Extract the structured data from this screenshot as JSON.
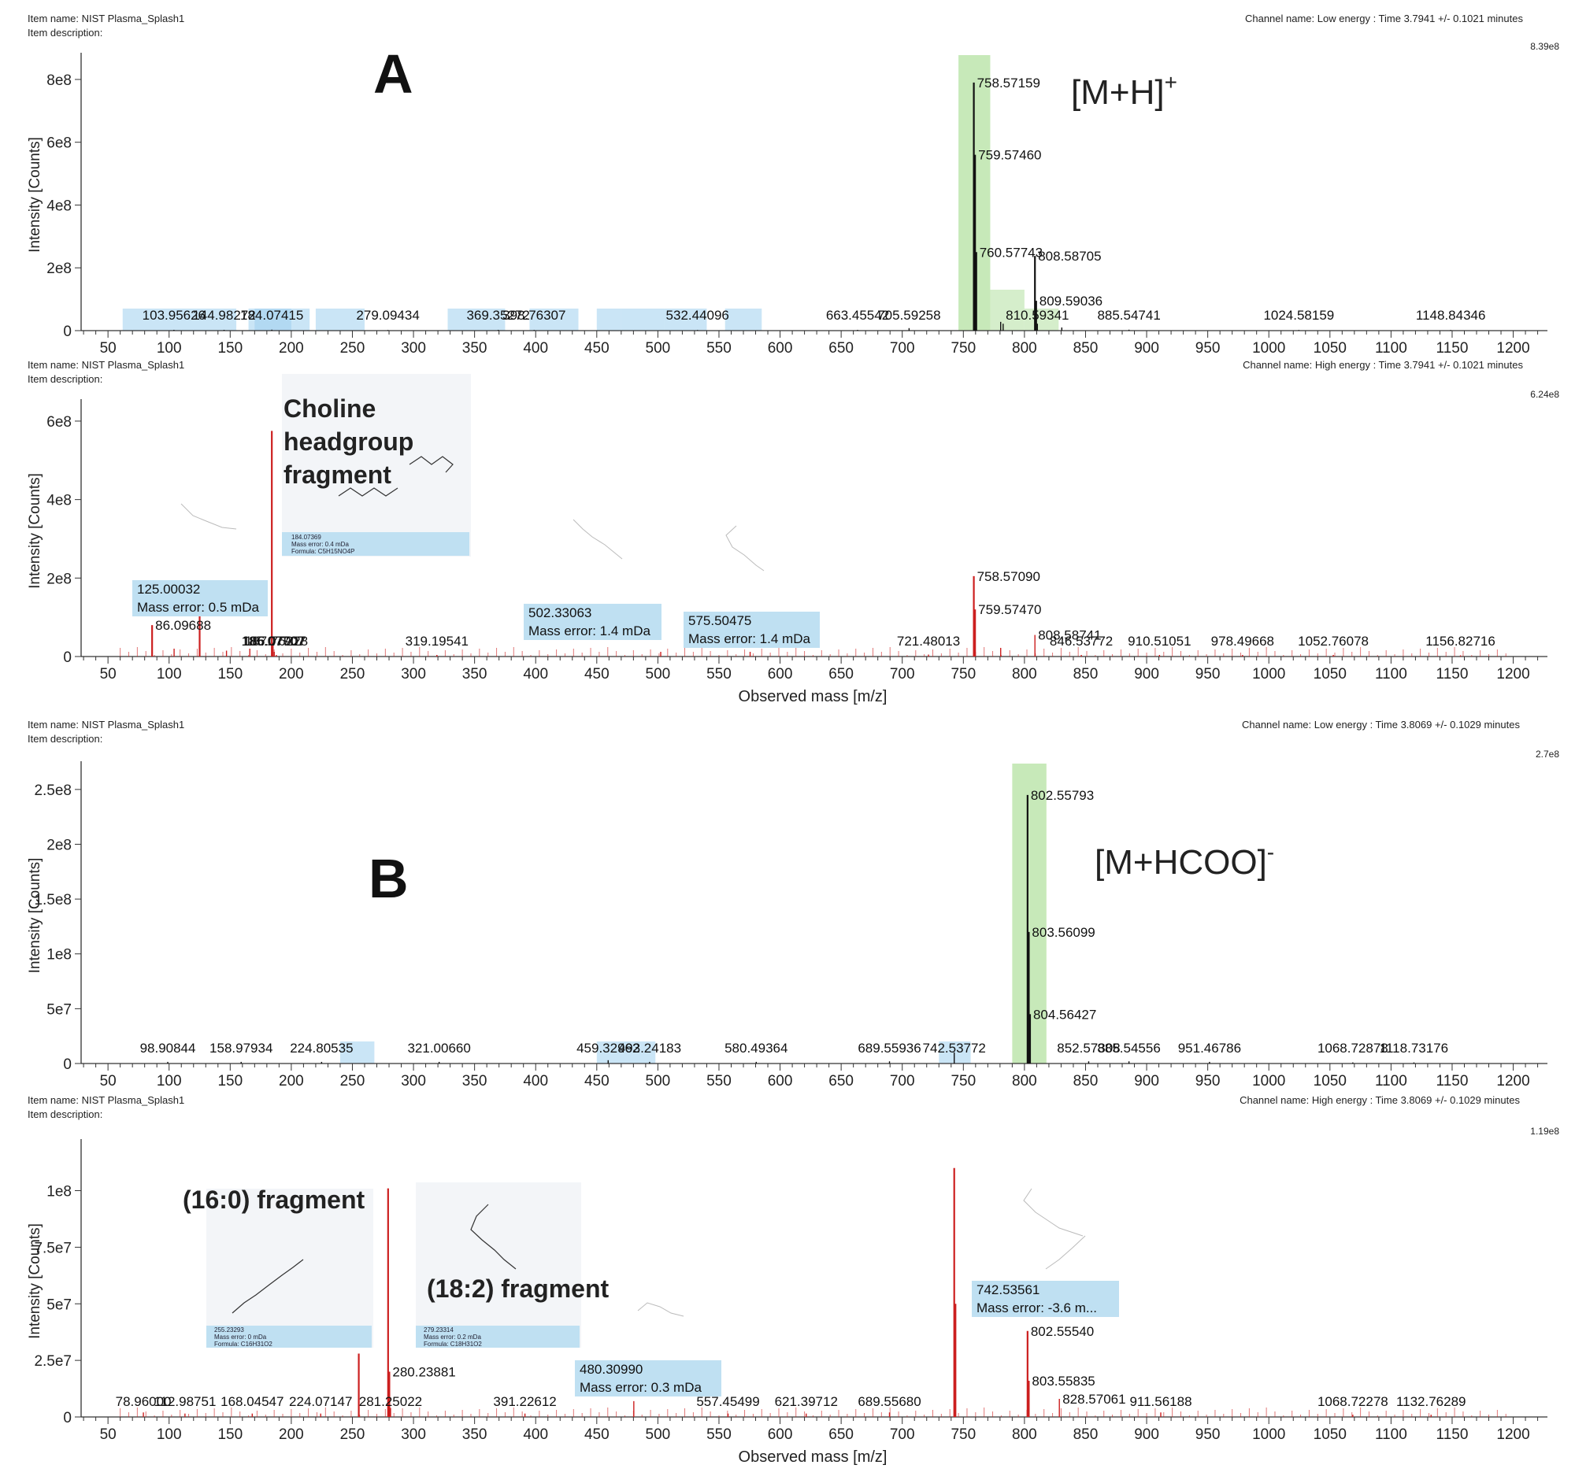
{
  "figure": {
    "panel_letters": [
      "A",
      "B"
    ],
    "adduct_labels": {
      "A": {
        "base": "[M+H]",
        "sup": "+"
      },
      "B": {
        "base": "[M+HCOO]",
        "sup": "-"
      }
    },
    "colors": {
      "low_energy_peak": "#111111",
      "high_energy_peak": "#cc1f1f",
      "precursor_highlight": "#b9e3a8",
      "annotation_box": "#bfe0f2",
      "axis": "#333333"
    },
    "structure_icon": "molecule-icon"
  },
  "chart_data": [
    {
      "id": "A-low",
      "type": "bar",
      "item_name": "Item name: NIST Plasma_Splash1",
      "item_description": "Item description:",
      "channel": "Channel name: Low energy : Time 3.7941 +/- 0.1021 minutes",
      "max_intensity_label": "8.39e8",
      "xlabel": "",
      "ylabel": "Intensity [Counts]",
      "xlim": [
        28,
        1228
      ],
      "ylim": [
        0,
        865000000
      ],
      "x_ticks": [
        50,
        100,
        150,
        200,
        250,
        300,
        350,
        400,
        450,
        500,
        550,
        600,
        650,
        700,
        750,
        800,
        850,
        900,
        950,
        1000,
        1050,
        1100,
        1150,
        1200
      ],
      "y_ticks": [
        {
          "v": 0,
          "t": "0"
        },
        {
          "v": 200000000,
          "t": "2e8"
        },
        {
          "v": 400000000,
          "t": "4e8"
        },
        {
          "v": 600000000,
          "t": "6e8"
        },
        {
          "v": 800000000,
          "t": "8e8"
        }
      ],
      "highlights": [
        {
          "from": 746,
          "to": 772,
          "color": "green"
        },
        {
          "from": 772,
          "to": 800,
          "color": "green"
        },
        {
          "from": 800,
          "to": 828,
          "color": "green"
        }
      ],
      "blue_bands": [
        [
          62,
          155
        ],
        [
          165,
          215
        ],
        [
          170,
          200
        ],
        [
          220,
          260
        ],
        [
          328,
          375
        ],
        [
          395,
          435
        ],
        [
          450,
          470
        ],
        [
          470,
          505
        ],
        [
          505,
          540
        ],
        [
          555,
          585
        ]
      ],
      "peaks": [
        {
          "mz": 103.95626,
          "i": 2500000,
          "label": "103.95626"
        },
        {
          "mz": 144.98272,
          "i": 2500000,
          "label": "144.98272"
        },
        {
          "mz": 184.07415,
          "i": 3000000,
          "label": "184.07415"
        },
        {
          "mz": 279.09434,
          "i": 2000000,
          "label": "279.09434"
        },
        {
          "mz": 369.35272,
          "i": 2500000,
          "label": "369.35272"
        },
        {
          "mz": 398.76307,
          "i": 2000000,
          "label": "398.76307"
        },
        {
          "mz": 532.44096,
          "i": 2000000,
          "label": "532.44096"
        },
        {
          "mz": 663.45542,
          "i": 2500000,
          "label": "663.45542"
        },
        {
          "mz": 705.59258,
          "i": 8000000,
          "label": "705.59258"
        },
        {
          "mz": 758.57159,
          "i": 790000000,
          "label": "758.57159"
        },
        {
          "mz": 759.5746,
          "i": 560000000,
          "label": "759.57460"
        },
        {
          "mz": 760.57743,
          "i": 250000000,
          "label": "760.57743"
        },
        {
          "mz": 780.55,
          "i": 28000000,
          "label": ""
        },
        {
          "mz": 782.56,
          "i": 22000000,
          "label": ""
        },
        {
          "mz": 808.58705,
          "i": 238000000,
          "label": "808.58705"
        },
        {
          "mz": 809.59036,
          "i": 95000000,
          "label": "809.59036"
        },
        {
          "mz": 810.59341,
          "i": 22000000,
          "label": "810.59341"
        },
        {
          "mz": 830.57,
          "i": 10000000,
          "label": ""
        },
        {
          "mz": 885.54741,
          "i": 3000000,
          "label": "885.54741"
        },
        {
          "mz": 1024.58159,
          "i": 2000000,
          "label": "1024.58159"
        },
        {
          "mz": 1148.84346,
          "i": 2000000,
          "label": "1148.84346"
        }
      ]
    },
    {
      "id": "A-high",
      "type": "bar",
      "item_name": "Item name: NIST Plasma_Splash1",
      "item_description": "Item description:",
      "channel": "Channel name: High energy : Time 3.7941 +/- 0.1021 minutes",
      "max_intensity_label": "6.24e8",
      "xlabel": "Observed mass [m/z]",
      "ylabel": "Intensity [Counts]",
      "xlim": [
        28,
        1228
      ],
      "ylim": [
        0,
        640000000
      ],
      "x_ticks": [
        50,
        100,
        150,
        200,
        250,
        300,
        350,
        400,
        450,
        500,
        550,
        600,
        650,
        700,
        750,
        800,
        850,
        900,
        950,
        1000,
        1050,
        1100,
        1150,
        1200
      ],
      "y_ticks": [
        {
          "v": 0,
          "t": "0"
        },
        {
          "v": 200000000,
          "t": "2e8"
        },
        {
          "v": 400000000,
          "t": "4e8"
        },
        {
          "v": 600000000,
          "t": "6e8"
        }
      ],
      "annotation_title": {
        "lines": [
          "Choline",
          "headgroup",
          "fragment"
        ]
      },
      "structure_box": {
        "mz": "184.07369",
        "error": "Mass error: 0.4 mDa",
        "formula": "Formula: C5H15NO4P"
      },
      "callouts": [
        {
          "mz": "125.00032",
          "error": "Mass error: 0.5 mDa"
        },
        {
          "mz": "502.33063",
          "error": "Mass error: 1.4 mDa"
        },
        {
          "mz": "575.50475",
          "error": "Mass error: 1.4 mDa"
        }
      ],
      "peaks": [
        {
          "mz": 86.09688,
          "i": 80000000,
          "label": "86.09688"
        },
        {
          "mz": 104.1,
          "i": 20000000,
          "label": ""
        },
        {
          "mz": 125.00032,
          "i": 110000000,
          "label": ""
        },
        {
          "mz": 146.98,
          "i": 15000000,
          "label": ""
        },
        {
          "mz": 166.06,
          "i": 20000000,
          "label": ""
        },
        {
          "mz": 184.07415,
          "i": 575000000,
          "label": ""
        },
        {
          "mz": 185.07707,
          "i": 35000000,
          "label": "185.07707"
        },
        {
          "mz": 186.07907,
          "i": 12000000,
          "label": "186.07907"
        },
        {
          "mz": 187.76228,
          "i": 4000000,
          "label": "187.76228"
        },
        {
          "mz": 319.19541,
          "i": 4000000,
          "label": "319.19541"
        },
        {
          "mz": 502.33063,
          "i": 12000000,
          "label": ""
        },
        {
          "mz": 575.50475,
          "i": 12000000,
          "label": ""
        },
        {
          "mz": 721.48013,
          "i": 5000000,
          "label": "721.48013"
        },
        {
          "mz": 758.5709,
          "i": 205000000,
          "label": "758.57090"
        },
        {
          "mz": 759.5747,
          "i": 120000000,
          "label": "759.57470"
        },
        {
          "mz": 780.55,
          "i": 22000000,
          "label": ""
        },
        {
          "mz": 808.58741,
          "i": 55000000,
          "label": "808.58741"
        },
        {
          "mz": 846.53772,
          "i": 4000000,
          "label": "846.53772"
        },
        {
          "mz": 910.51051,
          "i": 4000000,
          "label": "910.51051"
        },
        {
          "mz": 978.49668,
          "i": 4000000,
          "label": "978.49668"
        },
        {
          "mz": 1052.76078,
          "i": 4000000,
          "label": "1052.76078"
        },
        {
          "mz": 1156.82716,
          "i": 3000000,
          "label": "1156.82716"
        }
      ]
    },
    {
      "id": "B-low",
      "type": "bar",
      "item_name": "Item name: NIST Plasma_Splash1",
      "item_description": "Item description:",
      "channel": "Channel name: Low energy : Time 3.8069 +/- 0.1029 minutes",
      "max_intensity_label": "2.7e8",
      "xlabel": "",
      "ylabel": "Intensity [Counts]",
      "xlim": [
        28,
        1228
      ],
      "ylim": [
        0,
        270000000
      ],
      "x_ticks": [
        50,
        100,
        150,
        200,
        250,
        300,
        350,
        400,
        450,
        500,
        550,
        600,
        650,
        700,
        750,
        800,
        850,
        900,
        950,
        1000,
        1050,
        1100,
        1150,
        1200
      ],
      "y_ticks": [
        {
          "v": 0,
          "t": "0"
        },
        {
          "v": 50000000,
          "t": "5e7"
        },
        {
          "v": 100000000,
          "t": "1e8"
        },
        {
          "v": 150000000,
          "t": "1.5e8"
        },
        {
          "v": 200000000,
          "t": "2e8"
        },
        {
          "v": 250000000,
          "t": "2.5e8"
        }
      ],
      "highlights": [
        {
          "from": 790,
          "to": 818,
          "color": "green"
        }
      ],
      "blue_bands": [
        [
          240,
          268
        ],
        [
          450,
          498
        ],
        [
          730,
          756
        ]
      ],
      "peaks": [
        {
          "mz": 98.90844,
          "i": 1500000,
          "label": "98.90844"
        },
        {
          "mz": 158.97934,
          "i": 1500000,
          "label": "158.97934"
        },
        {
          "mz": 224.80535,
          "i": 1500000,
          "label": "224.80535"
        },
        {
          "mz": 321.0066,
          "i": 1500000,
          "label": "321.00660"
        },
        {
          "mz": 459.32962,
          "i": 3000000,
          "label": "459.32962"
        },
        {
          "mz": 493.24183,
          "i": 1500000,
          "label": "493.24183"
        },
        {
          "mz": 580.49364,
          "i": 1500000,
          "label": "580.49364"
        },
        {
          "mz": 689.55936,
          "i": 2000000,
          "label": "689.55936"
        },
        {
          "mz": 742.53772,
          "i": 10000000,
          "label": "742.53772"
        },
        {
          "mz": 802.55793,
          "i": 245000000,
          "label": "802.55793"
        },
        {
          "mz": 803.56099,
          "i": 120000000,
          "label": "803.56099"
        },
        {
          "mz": 804.56427,
          "i": 45000000,
          "label": "804.56427"
        },
        {
          "mz": 852.57308,
          "i": 2000000,
          "label": "852.57308"
        },
        {
          "mz": 885.54556,
          "i": 2000000,
          "label": "885.54556"
        },
        {
          "mz": 951.46786,
          "i": 1500000,
          "label": "951.46786"
        },
        {
          "mz": 1068.72878,
          "i": 1000000,
          "label": "1068.72878"
        },
        {
          "mz": 1118.73176,
          "i": 1000000,
          "label": "1118.73176"
        }
      ]
    },
    {
      "id": "B-high",
      "type": "bar",
      "item_name": "Item name: NIST Plasma_Splash1",
      "item_description": "Item description:",
      "channel": "Channel name: High energy : Time 3.8069 +/- 0.1029 minutes",
      "max_intensity_label": "1.19e8",
      "xlabel": "Observed mass [m/z]",
      "ylabel": "Intensity [Counts]",
      "xlim": [
        28,
        1228
      ],
      "ylim": [
        0,
        120000000
      ],
      "x_ticks": [
        50,
        100,
        150,
        200,
        250,
        300,
        350,
        400,
        450,
        500,
        550,
        600,
        650,
        700,
        750,
        800,
        850,
        900,
        950,
        1000,
        1050,
        1100,
        1150,
        1200
      ],
      "y_ticks": [
        {
          "v": 0,
          "t": "0"
        },
        {
          "v": 25000000,
          "t": "2.5e7"
        },
        {
          "v": 50000000,
          "t": "5e7"
        },
        {
          "v": 75000000,
          "t": "7.5e7"
        },
        {
          "v": 100000000,
          "t": "1e8"
        }
      ],
      "annotation_titles": [
        "(16:0) fragment",
        "(18:2) fragment"
      ],
      "structure_boxes": [
        {
          "mz": "255.23293",
          "error": "Mass error: 0 mDa",
          "formula": "Formula: C16H31O2"
        },
        {
          "mz": "279.23314",
          "error": "Mass error: 0.2 mDa",
          "formula": "Formula: C18H31O2"
        }
      ],
      "callouts": [
        {
          "mz": "480.30990",
          "error": "Mass error: 0.3 mDa"
        },
        {
          "mz": "742.53561",
          "error": "Mass error: -3.6 m..."
        }
      ],
      "peaks": [
        {
          "mz": 78.96,
          "i": 2000000,
          "label": "78.96000"
        },
        {
          "mz": 112.98751,
          "i": 1500000,
          "label": "112.98751"
        },
        {
          "mz": 168.04547,
          "i": 1500000,
          "label": "168.04547"
        },
        {
          "mz": 224.07147,
          "i": 1500000,
          "label": "224.07147"
        },
        {
          "mz": 255.23293,
          "i": 28000000,
          "label": ""
        },
        {
          "mz": 279.23314,
          "i": 101000000,
          "label": ""
        },
        {
          "mz": 280.23881,
          "i": 20000000,
          "label": "280.23881"
        },
        {
          "mz": 281.25022,
          "i": 4000000,
          "label": "281.25022"
        },
        {
          "mz": 391.22612,
          "i": 1500000,
          "label": "391.22612"
        },
        {
          "mz": 480.3099,
          "i": 7000000,
          "label": ""
        },
        {
          "mz": 557.45499,
          "i": 1500000,
          "label": "557.45499"
        },
        {
          "mz": 621.39712,
          "i": 1500000,
          "label": "621.39712"
        },
        {
          "mz": 689.5568,
          "i": 2000000,
          "label": "689.55680"
        },
        {
          "mz": 742.53561,
          "i": 110000000,
          "label": ""
        },
        {
          "mz": 743.54,
          "i": 50000000,
          "label": ""
        },
        {
          "mz": 802.5554,
          "i": 38000000,
          "label": "802.55540"
        },
        {
          "mz": 803.55835,
          "i": 16000000,
          "label": "803.55835"
        },
        {
          "mz": 828.57061,
          "i": 8000000,
          "label": "828.57061"
        },
        {
          "mz": 911.56188,
          "i": 2000000,
          "label": "911.56188"
        },
        {
          "mz": 1068.72278,
          "i": 1000000,
          "label": "1068.72278"
        },
        {
          "mz": 1132.76289,
          "i": 1000000,
          "label": "1132.76289"
        }
      ]
    }
  ]
}
